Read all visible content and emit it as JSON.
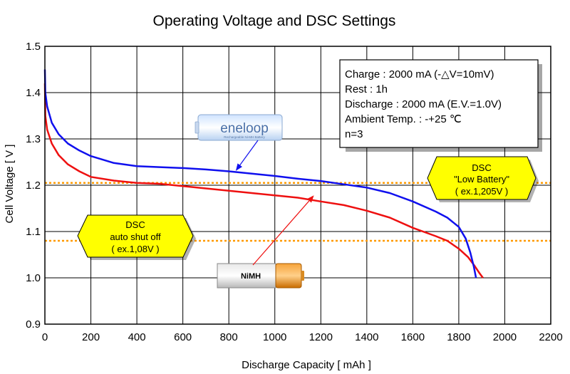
{
  "chart_data": {
    "type": "line",
    "title": "Operating Voltage and DSC Settings",
    "xlabel": "Discharge Capacity [ mAh ]",
    "ylabel": "Cell Voltage [ V ]",
    "xlim": [
      0,
      2200
    ],
    "ylim": [
      0.9,
      1.5
    ],
    "x_ticks": [
      "0",
      "200",
      "400",
      "600",
      "800",
      "1000",
      "1200",
      "1400",
      "1600",
      "1800",
      "2000",
      "2200"
    ],
    "y_ticks": [
      "0.9",
      "1.0",
      "1.1",
      "1.2",
      "1.3",
      "1.4",
      "1.5"
    ],
    "grid": true,
    "series": [
      {
        "name": "eneloop",
        "color": "#1010ee",
        "points": [
          [
            0,
            1.45
          ],
          [
            2,
            1.4
          ],
          [
            10,
            1.37
          ],
          [
            30,
            1.335
          ],
          [
            60,
            1.31
          ],
          [
            100,
            1.29
          ],
          [
            150,
            1.275
          ],
          [
            200,
            1.263
          ],
          [
            300,
            1.248
          ],
          [
            400,
            1.241
          ],
          [
            500,
            1.239
          ],
          [
            600,
            1.237
          ],
          [
            700,
            1.234
          ],
          [
            800,
            1.23
          ],
          [
            900,
            1.225
          ],
          [
            1000,
            1.22
          ],
          [
            1100,
            1.214
          ],
          [
            1200,
            1.209
          ],
          [
            1300,
            1.202
          ],
          [
            1400,
            1.195
          ],
          [
            1500,
            1.183
          ],
          [
            1600,
            1.165
          ],
          [
            1700,
            1.143
          ],
          [
            1750,
            1.13
          ],
          [
            1800,
            1.11
          ],
          [
            1830,
            1.085
          ],
          [
            1850,
            1.055
          ],
          [
            1865,
            1.025
          ],
          [
            1875,
            1.0
          ]
        ]
      },
      {
        "name": "NiMH",
        "color": "#ee1010",
        "points": [
          [
            0,
            1.42
          ],
          [
            2,
            1.35
          ],
          [
            10,
            1.32
          ],
          [
            30,
            1.29
          ],
          [
            60,
            1.265
          ],
          [
            100,
            1.245
          ],
          [
            150,
            1.23
          ],
          [
            200,
            1.218
          ],
          [
            300,
            1.21
          ],
          [
            400,
            1.205
          ],
          [
            500,
            1.203
          ],
          [
            600,
            1.198
          ],
          [
            700,
            1.193
          ],
          [
            800,
            1.188
          ],
          [
            900,
            1.183
          ],
          [
            1000,
            1.178
          ],
          [
            1100,
            1.173
          ],
          [
            1200,
            1.165
          ],
          [
            1300,
            1.157
          ],
          [
            1400,
            1.145
          ],
          [
            1500,
            1.13
          ],
          [
            1600,
            1.108
          ],
          [
            1700,
            1.09
          ],
          [
            1750,
            1.08
          ],
          [
            1800,
            1.063
          ],
          [
            1840,
            1.045
          ],
          [
            1870,
            1.025
          ],
          [
            1890,
            1.01
          ],
          [
            1905,
            1.0
          ]
        ]
      }
    ],
    "thresholds": [
      {
        "label": "DSC \"Low Battery\"",
        "value": 1.205,
        "color": "#ff9900"
      },
      {
        "label": "DSC auto shut off",
        "value": 1.08,
        "color": "#ff9900"
      }
    ],
    "info_box": {
      "lines": [
        "Charge : 2000 mA (-△V=10mV)",
        "Rest : 1h",
        "Discharge : 2000 mA (E.V.=1.0V)",
        "Ambient Temp. : -+25 ℃",
        "n=3"
      ]
    },
    "callouts": {
      "low_battery": {
        "lines": [
          "DSC",
          "\"Low Battery\"",
          "( ex.1,205V )"
        ],
        "fill": "#ffff00"
      },
      "shutoff": {
        "lines": [
          "DSC",
          "auto shut off",
          "( ex.1,08V )"
        ],
        "fill": "#ffff00"
      }
    },
    "battery_labels": {
      "eneloop": {
        "brand": "eneloop",
        "subtext": "Rechargeable Ni-MH Battery",
        "arrow_target": [
          830,
          1.231
        ]
      },
      "nimh": {
        "brand": "NiMH",
        "arrow_target": [
          1170,
          1.178
        ]
      }
    }
  }
}
